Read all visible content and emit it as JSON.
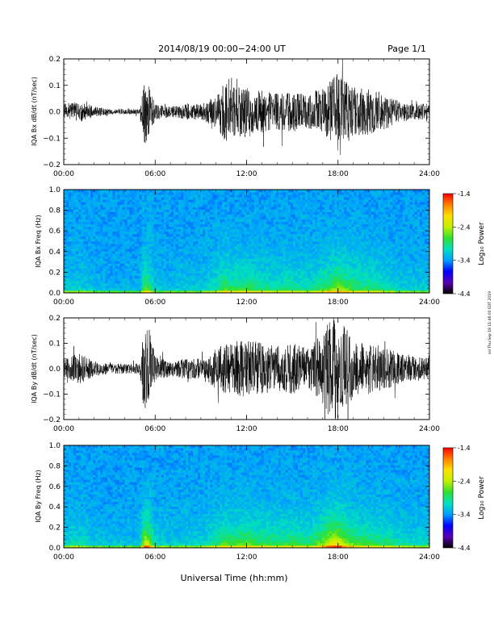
{
  "header": {
    "title": "2014/08/19  00:00−24:00 UT",
    "page": "Page 1/1"
  },
  "footer": {
    "xlabel": "Universal Time (hh:mm)",
    "side_stamp": "ssl Thu Sep 18 11:46:00 EDT 2019"
  },
  "colorbar": {
    "label": "Log₁₀ Power",
    "ticks": [
      "-1.4",
      "-2.4",
      "-3.4",
      "-4.4"
    ],
    "colors": [
      "#000000",
      "#5a00b4",
      "#0000ff",
      "#00a0ff",
      "#00e0c0",
      "#30e030",
      "#c0f000",
      "#ffe000",
      "#ff8000",
      "#ff0000"
    ]
  },
  "chart_data": [
    {
      "type": "line",
      "ylabel": "IQA Bx dB/dt (nT/sec)",
      "ylim": [
        -0.2,
        0.2
      ],
      "yticks": [
        "0.2",
        "0.1",
        "0.0",
        "−0.1",
        "−0.2"
      ],
      "xticks": [
        "00:00",
        "06:00",
        "12:00",
        "18:00",
        "24:00"
      ],
      "x_hours": [
        0,
        1,
        2,
        3,
        4,
        5,
        5.3,
        5.6,
        6,
        7,
        8,
        9,
        10,
        10.6,
        11,
        12,
        13,
        14,
        15,
        16,
        17,
        17.5,
        18,
        18.5,
        19,
        20,
        21,
        22,
        23,
        24
      ],
      "amplitude": [
        0.03,
        0.04,
        0.02,
        0.01,
        0.01,
        0.01,
        0.13,
        0.1,
        0.03,
        0.02,
        0.03,
        0.03,
        0.06,
        0.12,
        0.09,
        0.1,
        0.08,
        0.07,
        0.08,
        0.06,
        0.1,
        0.12,
        0.15,
        0.12,
        0.1,
        0.09,
        0.07,
        0.04,
        0.03,
        0.03
      ]
    },
    {
      "type": "heatmap",
      "ylabel": "IQA Bx Freq (Hz)",
      "ylim": [
        0.0,
        1.0
      ],
      "yticks": [
        "1.0",
        "0.8",
        "0.6",
        "0.4",
        "0.2",
        "0.0"
      ],
      "xticks": [
        "00:00",
        "06:00",
        "12:00",
        "18:00",
        "24:00"
      ],
      "zlim": [
        -4.4,
        -1.4
      ]
    },
    {
      "type": "line",
      "ylabel": "IQA By dB/dt (nT/sec)",
      "ylim": [
        -0.2,
        0.2
      ],
      "yticks": [
        "0.2",
        "0.1",
        "0.0",
        "−0.1",
        "−0.2"
      ],
      "xticks": [
        "00:00",
        "06:00",
        "12:00",
        "18:00",
        "24:00"
      ],
      "x_hours": [
        0,
        1,
        2,
        3,
        4,
        5,
        5.3,
        5.6,
        6,
        7,
        8,
        9,
        10,
        10.6,
        11,
        12,
        13,
        14,
        15,
        16,
        17,
        17.5,
        18,
        18.5,
        19,
        20,
        21,
        22,
        23,
        24
      ],
      "amplitude": [
        0.04,
        0.06,
        0.03,
        0.02,
        0.02,
        0.02,
        0.2,
        0.16,
        0.05,
        0.03,
        0.04,
        0.04,
        0.08,
        0.12,
        0.1,
        0.12,
        0.1,
        0.09,
        0.1,
        0.08,
        0.14,
        0.2,
        0.2,
        0.16,
        0.12,
        0.1,
        0.09,
        0.06,
        0.05,
        0.04
      ]
    },
    {
      "type": "heatmap",
      "ylabel": "IQA By Freq (Hz)",
      "ylim": [
        0.0,
        1.0
      ],
      "yticks": [
        "1.0",
        "0.8",
        "0.6",
        "0.4",
        "0.2",
        "0.0"
      ],
      "xticks": [
        "00:00",
        "06:00",
        "12:00",
        "18:00",
        "24:00"
      ],
      "zlim": [
        -4.4,
        -1.4
      ]
    }
  ]
}
